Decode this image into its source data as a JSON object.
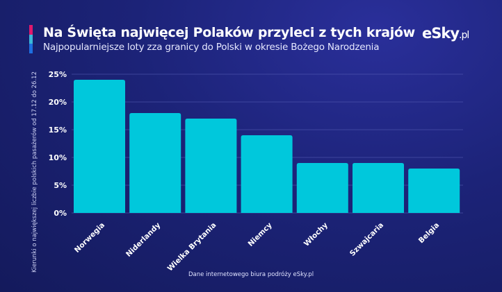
{
  "header": {
    "title": "Na Święta najwięcej Polaków przyleci z tych krajów",
    "subtitle": "Najpopularniejsze loty zza granicy do Polski w okresie Bożego Narodzenia",
    "logo": "eSky",
    "logo_suffix": ".pl",
    "stripe_colors": [
      "#e0186c",
      "#3ab8d8",
      "#1e6fe0"
    ]
  },
  "footer": {
    "source": "Dane internetowego biura podróży eSky.pl"
  },
  "chart_data": {
    "type": "bar",
    "title": "Na Święta najwięcej Polaków przyleci z tych krajów",
    "xlabel": "",
    "ylabel": "Kierunki o największej liczbie polskich pasażerów od 17.12 do 26.12",
    "categories": [
      "Norwegia",
      "Niderlandy",
      "Wielka Brytania",
      "Niemcy",
      "Włochy",
      "Szwajcaria",
      "Belgia"
    ],
    "values": [
      24,
      18,
      17,
      14,
      9,
      9,
      8
    ],
    "unit": "%",
    "ylim": [
      0,
      25
    ],
    "yticks": [
      0,
      5,
      10,
      15,
      20,
      25
    ],
    "ytick_labels": [
      "0%",
      "5%",
      "10%",
      "15%",
      "20%",
      "25%"
    ],
    "grid": true,
    "bar_color": "#00c8dc"
  }
}
